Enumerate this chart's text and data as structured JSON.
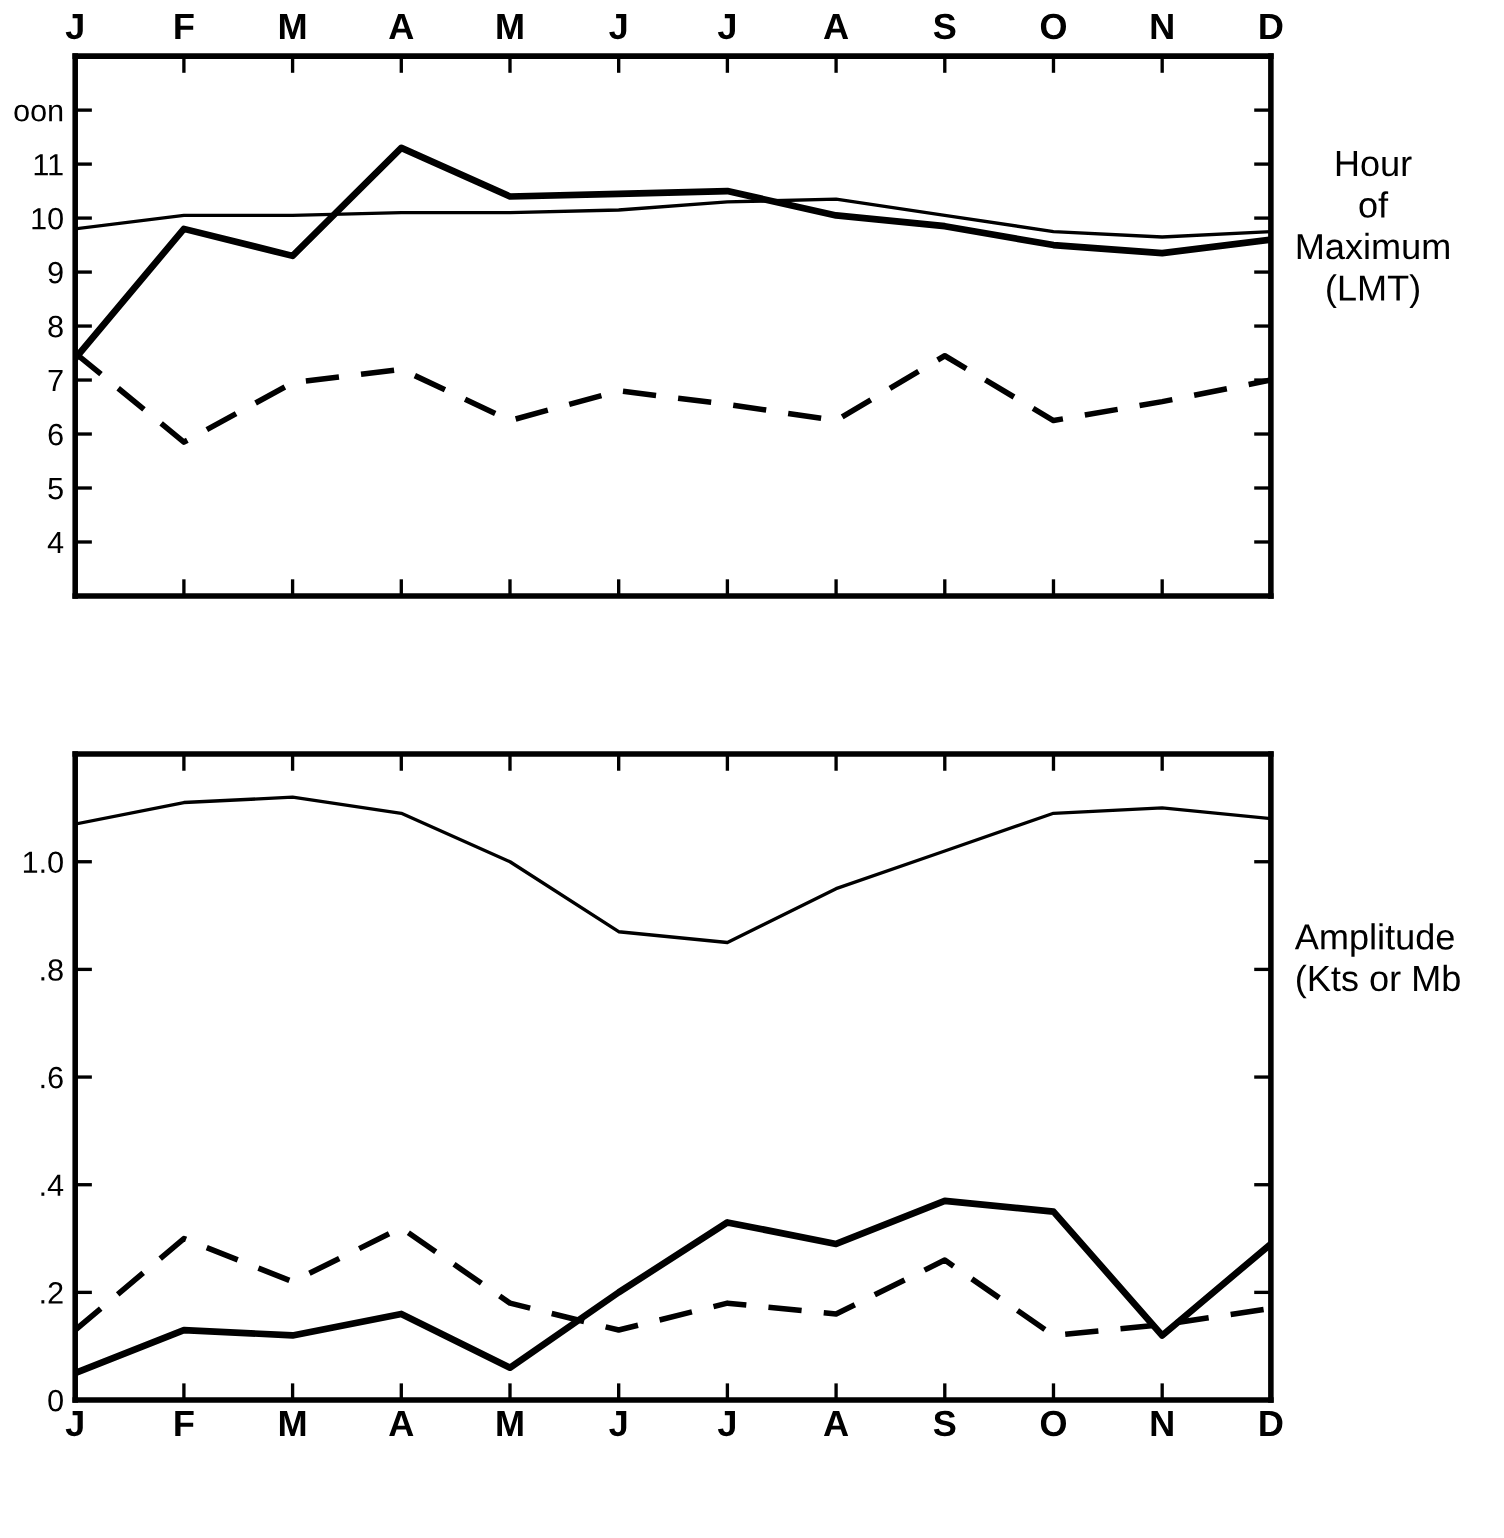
{
  "chart_data": [
    {
      "type": "line",
      "ylabel": "Hour\nof\nMaximum\n(LMT)",
      "categories": [
        "J",
        "F",
        "M",
        "A",
        "M",
        "J",
        "J",
        "A",
        "S",
        "O",
        "N",
        "D"
      ],
      "series": [
        {
          "color": "#000000",
          "line_style": "solid",
          "values": [
            9.8,
            10.05,
            10.05,
            10.1,
            10.1,
            10.15,
            10.3,
            10.35,
            10.05,
            9.75,
            9.65,
            9.75
          ]
        },
        {
          "color": "#000000",
          "line_style": "solid",
          "values": [
            7.4,
            9.8,
            9.3,
            11.3,
            10.4,
            10.45,
            10.5,
            10.05,
            9.85,
            9.5,
            9.35,
            9.6
          ]
        },
        {
          "color": "#000000",
          "line_style": "dashed",
          "values": [
            7.5,
            5.85,
            6.95,
            7.2,
            6.25,
            6.8,
            6.55,
            6.25,
            7.45,
            6.25,
            6.6,
            7.0
          ]
        }
      ],
      "ylim": [
        3,
        13
      ],
      "yticks": [
        4,
        5,
        6,
        7,
        8,
        9,
        10,
        11,
        {
          "value": 12,
          "label": "oon"
        }
      ],
      "grid": false,
      "legend": false,
      "marker": "none"
    },
    {
      "type": "line",
      "ylabel": "Amplitude\n(Kts or Mb",
      "categories": [
        "J",
        "F",
        "M",
        "A",
        "M",
        "J",
        "J",
        "A",
        "S",
        "O",
        "N",
        "D"
      ],
      "series": [
        {
          "color": "#000000",
          "line_style": "solid",
          "values": [
            1.07,
            1.11,
            1.12,
            1.09,
            1.0,
            0.87,
            0.85,
            0.95,
            1.02,
            1.09,
            1.1,
            1.08
          ]
        },
        {
          "color": "#000000",
          "line_style": "solid",
          "values": [
            0.05,
            0.13,
            0.12,
            0.16,
            0.06,
            0.2,
            0.33,
            0.29,
            0.37,
            0.35,
            0.12,
            0.29
          ]
        },
        {
          "color": "#000000",
          "line_style": "dashed",
          "values": [
            0.13,
            0.3,
            0.22,
            0.32,
            0.18,
            0.13,
            0.18,
            0.16,
            0.26,
            0.12,
            0.14,
            0.17
          ]
        }
      ],
      "ylim": [
        0,
        1.2
      ],
      "yticks": [
        0,
        {
          "value": 0.2,
          "label": ".2"
        },
        {
          "value": 0.4,
          "label": ".4"
        },
        {
          "value": 0.6,
          "label": ".6"
        },
        {
          "value": 0.8,
          "label": ".8"
        },
        {
          "value": 1.0,
          "label": "1.0"
        }
      ],
      "grid": false,
      "legend": false,
      "marker": "none"
    }
  ]
}
